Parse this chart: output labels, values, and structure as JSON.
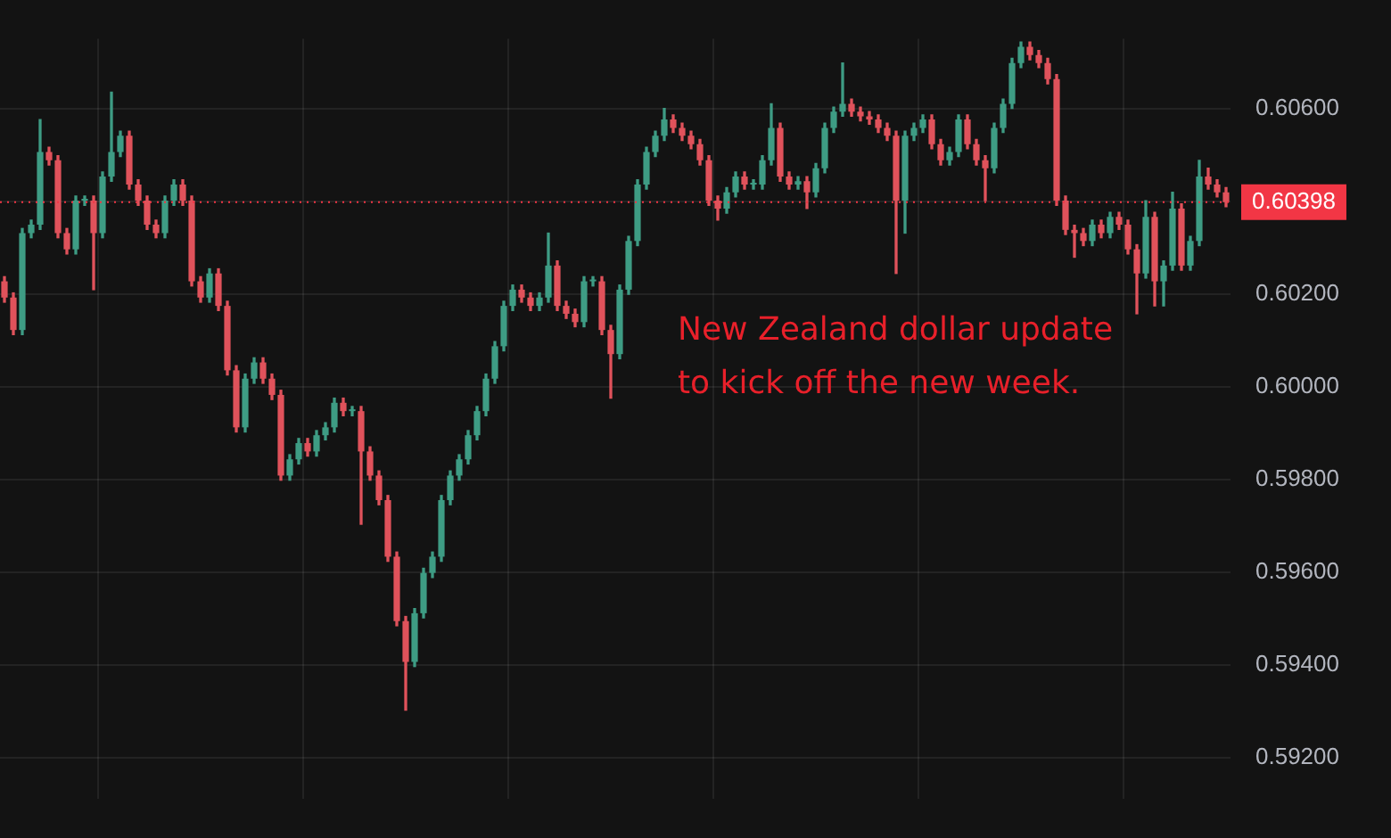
{
  "chart_data": {
    "type": "candlestick",
    "categories": [
      null,
      null,
      null,
      null,
      null,
      null,
      null,
      null,
      null,
      null,
      null,
      null,
      null,
      null,
      null,
      null,
      null,
      null,
      null,
      null,
      null,
      null,
      null,
      null,
      null,
      null,
      null,
      null,
      null,
      null,
      null,
      null,
      null,
      null,
      null,
      null,
      null,
      null,
      null,
      null,
      null,
      null,
      null,
      null,
      null,
      null,
      null,
      null,
      null,
      null,
      null,
      null,
      null,
      null,
      null,
      null,
      null,
      null,
      null,
      null,
      null,
      null,
      null,
      null,
      null,
      null,
      null,
      null,
      null,
      null,
      null,
      null,
      null,
      null,
      null,
      null,
      null,
      null,
      null,
      null,
      null,
      null,
      null,
      null,
      null,
      null,
      null,
      null,
      null,
      null,
      null,
      null,
      null,
      null,
      null,
      null,
      null,
      null,
      null,
      null,
      null,
      null,
      null,
      null,
      null,
      null,
      null,
      null,
      null,
      null,
      null,
      null,
      null,
      null,
      null,
      null,
      null,
      null,
      null,
      null,
      null,
      null,
      null,
      null,
      null,
      null,
      null,
      null,
      null,
      null,
      null,
      null,
      null,
      null,
      null,
      null,
      null,
      null
    ],
    "ohlc": [
      [
        0.60227,
        0.60237,
        0.60182,
        0.60192
      ],
      [
        0.60192,
        0.60202,
        0.60112,
        0.60122
      ],
      [
        0.60122,
        0.60341,
        0.60112,
        0.60331
      ],
      [
        0.60331,
        0.60359,
        0.60321,
        0.60349
      ],
      [
        0.60349,
        0.60576,
        0.60339,
        0.60506
      ],
      [
        0.60506,
        0.60516,
        0.60478,
        0.60488
      ],
      [
        0.60488,
        0.60498,
        0.60321,
        0.60331
      ],
      [
        0.60331,
        0.60341,
        0.60286,
        0.60296
      ],
      [
        0.60296,
        0.60411,
        0.60286,
        0.60401
      ],
      [
        0.60401,
        0.60411,
        0.60391,
        0.60401
      ],
      [
        0.60401,
        0.60411,
        0.60209,
        0.60331
      ],
      [
        0.60331,
        0.60463,
        0.60321,
        0.60453
      ],
      [
        0.60453,
        0.60635,
        0.60443,
        0.60506
      ],
      [
        0.60506,
        0.60551,
        0.60496,
        0.60541
      ],
      [
        0.60541,
        0.60551,
        0.60426,
        0.60436
      ],
      [
        0.60436,
        0.60446,
        0.60391,
        0.60401
      ],
      [
        0.60401,
        0.60411,
        0.60339,
        0.60349
      ],
      [
        0.60349,
        0.60359,
        0.60321,
        0.60331
      ],
      [
        0.60331,
        0.60411,
        0.60321,
        0.60401
      ],
      [
        0.60401,
        0.60446,
        0.60391,
        0.60436
      ],
      [
        0.60436,
        0.60446,
        0.60391,
        0.60401
      ],
      [
        0.60401,
        0.60411,
        0.60217,
        0.60227
      ],
      [
        0.60227,
        0.60237,
        0.60182,
        0.60192
      ],
      [
        0.60192,
        0.60254,
        0.60182,
        0.60244
      ],
      [
        0.60244,
        0.60254,
        0.60164,
        0.60174
      ],
      [
        0.60174,
        0.60184,
        0.60025,
        0.60035
      ],
      [
        0.60035,
        0.60045,
        0.59902,
        0.59912
      ],
      [
        0.59912,
        0.60027,
        0.59902,
        0.60017
      ],
      [
        0.60017,
        0.60062,
        0.60007,
        0.60052
      ],
      [
        0.60052,
        0.60062,
        0.60007,
        0.60017
      ],
      [
        0.60017,
        0.60027,
        0.59972,
        0.59982
      ],
      [
        0.59982,
        0.59992,
        0.59798,
        0.59808
      ],
      [
        0.59808,
        0.59853,
        0.59798,
        0.59843
      ],
      [
        0.59843,
        0.59888,
        0.59833,
        0.59878
      ],
      [
        0.59878,
        0.59888,
        0.5985,
        0.5986
      ],
      [
        0.5986,
        0.59905,
        0.5985,
        0.59895
      ],
      [
        0.59895,
        0.59922,
        0.59885,
        0.59912
      ],
      [
        0.59912,
        0.59975,
        0.59902,
        0.59965
      ],
      [
        0.59965,
        0.59975,
        0.59937,
        0.59947
      ],
      [
        0.59947,
        0.59957,
        0.59937,
        0.59947
      ],
      [
        0.59947,
        0.59957,
        0.59703,
        0.5986
      ],
      [
        0.5986,
        0.5987,
        0.59798,
        0.59808
      ],
      [
        0.59808,
        0.59818,
        0.59745,
        0.59755
      ],
      [
        0.59755,
        0.59765,
        0.59623,
        0.59633
      ],
      [
        0.59633,
        0.59643,
        0.59484,
        0.59494
      ],
      [
        0.59494,
        0.59504,
        0.59302,
        0.59406
      ],
      [
        0.59406,
        0.59521,
        0.59396,
        0.59511
      ],
      [
        0.59511,
        0.59608,
        0.59501,
        0.59598
      ],
      [
        0.59598,
        0.59643,
        0.59588,
        0.59633
      ],
      [
        0.59633,
        0.59765,
        0.59623,
        0.59755
      ],
      [
        0.59755,
        0.59818,
        0.59745,
        0.59808
      ],
      [
        0.59808,
        0.59853,
        0.59798,
        0.59843
      ],
      [
        0.59843,
        0.59905,
        0.59833,
        0.59895
      ],
      [
        0.59895,
        0.59957,
        0.59885,
        0.59947
      ],
      [
        0.59947,
        0.60027,
        0.59937,
        0.60017
      ],
      [
        0.60017,
        0.60097,
        0.60007,
        0.60087
      ],
      [
        0.60087,
        0.60184,
        0.60077,
        0.60174
      ],
      [
        0.60174,
        0.60219,
        0.60164,
        0.60209
      ],
      [
        0.60209,
        0.60219,
        0.60182,
        0.60192
      ],
      [
        0.60192,
        0.60202,
        0.60164,
        0.60174
      ],
      [
        0.60174,
        0.60202,
        0.60164,
        0.60192
      ],
      [
        0.60192,
        0.60331,
        0.60182,
        0.60261
      ],
      [
        0.60261,
        0.60271,
        0.60164,
        0.60174
      ],
      [
        0.60174,
        0.60184,
        0.60147,
        0.60157
      ],
      [
        0.60157,
        0.60167,
        0.60129,
        0.60139
      ],
      [
        0.60139,
        0.60237,
        0.60129,
        0.60227
      ],
      [
        0.60227,
        0.60237,
        0.60217,
        0.60227
      ],
      [
        0.60227,
        0.60237,
        0.60112,
        0.60122
      ],
      [
        0.60122,
        0.60132,
        0.59975,
        0.6007
      ],
      [
        0.6007,
        0.60219,
        0.6006,
        0.60209
      ],
      [
        0.60209,
        0.60324,
        0.60199,
        0.60314
      ],
      [
        0.60314,
        0.60446,
        0.60304,
        0.60436
      ],
      [
        0.60436,
        0.60516,
        0.60426,
        0.60506
      ],
      [
        0.60506,
        0.60551,
        0.60496,
        0.60541
      ],
      [
        0.60541,
        0.606,
        0.60531,
        0.60576
      ],
      [
        0.60576,
        0.60586,
        0.60548,
        0.60558
      ],
      [
        0.60558,
        0.60568,
        0.60531,
        0.60541
      ],
      [
        0.60541,
        0.60551,
        0.60513,
        0.60523
      ],
      [
        0.60523,
        0.60533,
        0.60478,
        0.60488
      ],
      [
        0.60488,
        0.60498,
        0.60391,
        0.60401
      ],
      [
        0.60401,
        0.60411,
        0.60359,
        0.60384
      ],
      [
        0.60384,
        0.60429,
        0.60374,
        0.60419
      ],
      [
        0.60419,
        0.60463,
        0.60409,
        0.60453
      ],
      [
        0.60453,
        0.60463,
        0.60426,
        0.60436
      ],
      [
        0.60436,
        0.60446,
        0.60426,
        0.60436
      ],
      [
        0.60436,
        0.60498,
        0.60426,
        0.60488
      ],
      [
        0.60488,
        0.6061,
        0.60478,
        0.60558
      ],
      [
        0.60558,
        0.60568,
        0.60443,
        0.60453
      ],
      [
        0.60453,
        0.60463,
        0.60426,
        0.60436
      ],
      [
        0.60436,
        0.60453,
        0.60426,
        0.60443
      ],
      [
        0.60443,
        0.60453,
        0.60384,
        0.60419
      ],
      [
        0.60419,
        0.60481,
        0.60409,
        0.60471
      ],
      [
        0.60471,
        0.60568,
        0.60461,
        0.60558
      ],
      [
        0.60558,
        0.60603,
        0.60548,
        0.60593
      ],
      [
        0.60593,
        0.60698,
        0.60583,
        0.6061
      ],
      [
        0.6061,
        0.6062,
        0.60583,
        0.60593
      ],
      [
        0.60593,
        0.60603,
        0.60573,
        0.60583
      ],
      [
        0.60583,
        0.60593,
        0.60566,
        0.60576
      ],
      [
        0.60576,
        0.60586,
        0.60548,
        0.60558
      ],
      [
        0.60558,
        0.60568,
        0.60531,
        0.60541
      ],
      [
        0.60541,
        0.60551,
        0.60244,
        0.60401
      ],
      [
        0.60401,
        0.60551,
        0.60331,
        0.60541
      ],
      [
        0.60541,
        0.60568,
        0.60531,
        0.60558
      ],
      [
        0.60558,
        0.60586,
        0.60548,
        0.60576
      ],
      [
        0.60576,
        0.60586,
        0.60513,
        0.60523
      ],
      [
        0.60523,
        0.60533,
        0.60478,
        0.60488
      ],
      [
        0.60488,
        0.60516,
        0.60478,
        0.60506
      ],
      [
        0.60506,
        0.60586,
        0.60496,
        0.60576
      ],
      [
        0.60576,
        0.60586,
        0.60513,
        0.60523
      ],
      [
        0.60523,
        0.60533,
        0.60478,
        0.60488
      ],
      [
        0.60488,
        0.60498,
        0.60401,
        0.60471
      ],
      [
        0.60471,
        0.60568,
        0.60461,
        0.60558
      ],
      [
        0.60558,
        0.6062,
        0.60548,
        0.6061
      ],
      [
        0.6061,
        0.60708,
        0.606,
        0.60698
      ],
      [
        0.60698,
        0.60743,
        0.60688,
        0.60733
      ],
      [
        0.60733,
        0.60743,
        0.60705,
        0.60715
      ],
      [
        0.60715,
        0.60725,
        0.60688,
        0.60698
      ],
      [
        0.60698,
        0.60708,
        0.60653,
        0.60663
      ],
      [
        0.60663,
        0.60673,
        0.60391,
        0.60401
      ],
      [
        0.60401,
        0.60411,
        0.60328,
        0.60338
      ],
      [
        0.60338,
        0.60348,
        0.60279,
        0.60331
      ],
      [
        0.60331,
        0.60341,
        0.60304,
        0.60314
      ],
      [
        0.60314,
        0.60359,
        0.60304,
        0.60349
      ],
      [
        0.60349,
        0.60359,
        0.60321,
        0.60331
      ],
      [
        0.60331,
        0.60376,
        0.60321,
        0.60366
      ],
      [
        0.60366,
        0.60376,
        0.60339,
        0.60349
      ],
      [
        0.60349,
        0.60359,
        0.60286,
        0.60296
      ],
      [
        0.60296,
        0.60306,
        0.60157,
        0.60244
      ],
      [
        0.60244,
        0.60401,
        0.60234,
        0.60366
      ],
      [
        0.60366,
        0.60376,
        0.60174,
        0.60227
      ],
      [
        0.60227,
        0.60271,
        0.60174,
        0.60261
      ],
      [
        0.60261,
        0.60419,
        0.60251,
        0.60384
      ],
      [
        0.60384,
        0.60394,
        0.60251,
        0.60261
      ],
      [
        0.60261,
        0.60324,
        0.60251,
        0.60314
      ],
      [
        0.60314,
        0.60488,
        0.60304,
        0.60453
      ],
      [
        0.60453,
        0.60471,
        0.60426,
        0.60436
      ],
      [
        0.60436,
        0.60446,
        0.60409,
        0.60419
      ],
      [
        0.60419,
        0.60429,
        0.60388,
        0.60398
      ]
    ],
    "ylim": [
      0.5911,
      0.6075
    ],
    "yticks": [
      {
        "value": 0.592,
        "label": "0.59200"
      },
      {
        "value": 0.594,
        "label": "0.59400"
      },
      {
        "value": 0.596,
        "label": "0.59600"
      },
      {
        "value": 0.598,
        "label": "0.59800"
      },
      {
        "value": 0.6,
        "label": "0.60000"
      },
      {
        "value": 0.602,
        "label": "0.60200"
      },
      {
        "value": 0.604,
        "label": null
      },
      {
        "value": 0.606,
        "label": "0.60600"
      }
    ],
    "ref_lines": [
      {
        "axis": "y",
        "value": 0.60398,
        "label": "0.60398",
        "color": "#f23645",
        "line_style": "dotted"
      }
    ],
    "annotations": [
      "New Zealand dollar update to kick off the new week."
    ],
    "tick_labels": "y",
    "grid": true
  }
}
